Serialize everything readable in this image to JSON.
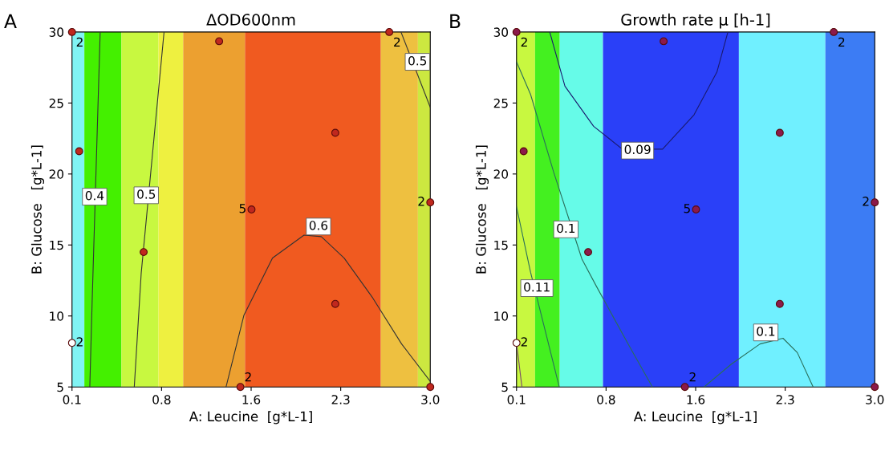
{
  "chart_data": [
    {
      "type": "scatter",
      "title": "ΔOD600nm",
      "xlabel": "A: Leucine  [g*L-1]",
      "ylabel": "B: Glucose   [g*L-1]",
      "xlim": [
        0.1,
        3.0
      ],
      "xticks": [
        0.1,
        {
          "value": 0.825,
          "label": "0.8"
        },
        {
          "value": 1.55,
          "label": "1.6"
        },
        {
          "value": 2.275,
          "label": "2.3"
        },
        {
          "value": 3.0,
          "label": "3.0"
        }
      ],
      "ylim": [
        5,
        30
      ],
      "yticks": [
        5,
        10,
        15,
        20,
        25,
        30
      ],
      "bands": [
        {
          "axis": "x",
          "from": 0.1,
          "to": 0.2,
          "color": "#80f4f4"
        },
        {
          "axis": "x",
          "from": 0.2,
          "to": 0.5,
          "color": "#44f000"
        },
        {
          "axis": "x",
          "from": 0.5,
          "to": 0.8,
          "color": "#c8f840"
        },
        {
          "axis": "x",
          "from": 0.8,
          "to": 1.0,
          "color": "#eef040"
        },
        {
          "axis": "x",
          "from": 1.0,
          "to": 1.5,
          "color": "#eca030"
        },
        {
          "axis": "x",
          "from": 1.5,
          "to": 2.6,
          "color": "#f05a20"
        },
        {
          "axis": "x",
          "from": 2.6,
          "to": 2.9,
          "color": "#eec040"
        },
        {
          "axis": "x",
          "from": 2.9,
          "to": 3.0,
          "color": "#cce840"
        }
      ],
      "series": [
        {
          "marker": "circle",
          "x": [
            0.1,
            1.291,
            0.158,
            0.68,
            1.553,
            2.231,
            2.231,
            1.463,
            2.668,
            3.0,
            3.0,
            0.1
          ],
          "values": [
            30,
            29.35,
            21.6,
            14.5,
            17.5,
            22.9,
            10.85,
            5,
            30,
            18.0,
            5,
            8.1
          ],
          "colors": [
            "#c0281e",
            "#c0281e",
            "#c0281e",
            "#c0281e",
            "#c0281e",
            "#c0281e",
            "#c0281e",
            "#c0281e",
            "#c0281e",
            "#c0281e",
            "#c0281e",
            "#ffffff"
          ]
        },
        {
          "type": "line",
          "color": "#333333",
          "x": [
            0.328,
            0.263,
            0.244
          ],
          "values": [
            30,
            11,
            5
          ]
        },
        {
          "type": "line",
          "color": "#333333",
          "x": [
            0.845,
            0.66,
            0.604
          ],
          "values": [
            30,
            13,
            5
          ]
        },
        {
          "type": "line",
          "color": "#333333",
          "x": [
            2.763,
            3.0
          ],
          "values": [
            30,
            24.7
          ]
        },
        {
          "type": "line",
          "color": "#333333",
          "x": [
            1.347,
            1.491,
            1.723,
            1.978,
            2.118,
            2.303,
            2.535,
            2.768,
            3.0
          ],
          "values": [
            5,
            10.04,
            14.08,
            15.69,
            15.59,
            14.08,
            11.26,
            8.03,
            5.4
          ]
        }
      ],
      "annotations": [
        "A",
        {
          "text": "0.4",
          "x": 0.283,
          "y": 18.4
        },
        {
          "text": "0.5",
          "x": 0.701,
          "y": 18.5
        },
        {
          "text": "0.5",
          "x": 2.896,
          "y": 27.9
        },
        {
          "text": "0.6",
          "x": 2.095,
          "y": 16.3
        },
        {
          "text": "2",
          "x": 0.1,
          "y": 30
        },
        {
          "text": "5",
          "x": 1.553,
          "y": 17.5
        },
        {
          "text": "2",
          "x": 1.463,
          "y": 5
        },
        {
          "text": "2",
          "x": 2.668,
          "y": 30
        },
        {
          "text": "2",
          "x": 3.0,
          "y": 18.0
        },
        {
          "text": "2",
          "x": 0.1,
          "y": 8.1
        }
      ]
    },
    {
      "type": "scatter",
      "title": "Growth rate μ [h-1]",
      "xlabel": "A: Leucine  [g*L-1]",
      "ylabel": "B: Glucose   [g*L-1]",
      "xlim": [
        0.1,
        3.0
      ],
      "xticks": [
        0.1,
        {
          "value": 0.825,
          "label": "0.8"
        },
        {
          "value": 1.55,
          "label": "1.6"
        },
        {
          "value": 2.275,
          "label": "2.3"
        },
        {
          "value": 3.0,
          "label": "3.0"
        }
      ],
      "ylim": [
        5,
        30
      ],
      "yticks": [
        5,
        10,
        15,
        20,
        25,
        30
      ],
      "bands": [
        {
          "axis": "x",
          "from": 0.1,
          "to": 0.25,
          "color": "#c8f840"
        },
        {
          "axis": "x",
          "from": 0.25,
          "to": 0.45,
          "color": "#44f020"
        },
        {
          "axis": "x",
          "from": 0.45,
          "to": 0.8,
          "color": "#66fbe8"
        },
        {
          "axis": "x",
          "from": 0.8,
          "to": 1.9,
          "color": "#2a40f8"
        },
        {
          "axis": "x",
          "from": 1.9,
          "to": 2.6,
          "color": "#70f0ff"
        },
        {
          "axis": "x",
          "from": 2.6,
          "to": 3.0,
          "color": "#3c7cf4"
        }
      ],
      "series": [
        {
          "marker": "circle",
          "x": [
            0.1,
            1.291,
            0.158,
            0.68,
            1.553,
            2.231,
            2.231,
            1.463,
            2.668,
            3.0,
            3.0,
            0.1
          ],
          "values": [
            30,
            29.35,
            21.6,
            14.5,
            17.5,
            22.9,
            10.85,
            5,
            30,
            18.0,
            5,
            8.1
          ],
          "colors": [
            "#8b1a4a",
            "#8b1a4a",
            "#8b1a4a",
            "#8b1a4a",
            "#8b1a4a",
            "#8b1a4a",
            "#8b1a4a",
            "#8b1a4a",
            "#8b1a4a",
            "#8b1a4a",
            "#8b1a4a",
            "#ffffff"
          ]
        },
        {
          "type": "line",
          "color": "#1a1a6e",
          "x": [
            0.369,
            0.492,
            0.724,
            0.957,
            1.282,
            1.537,
            1.723,
            1.811
          ],
          "values": [
            30,
            26.19,
            23.36,
            21.75,
            21.75,
            24.17,
            27.2,
            30
          ]
        },
        {
          "type": "line",
          "color": "#2a6e5a",
          "x": [
            0.1,
            0.214,
            0.4,
            0.63,
            0.748,
            1.003,
            1.2
          ],
          "values": [
            27.9,
            25.6,
            20.15,
            14.0,
            12.07,
            8.03,
            5
          ]
        },
        {
          "type": "line",
          "color": "#2a6e5a",
          "x": [
            0.1,
            0.214,
            0.33,
            0.446
          ],
          "values": [
            17.7,
            13.07,
            9.04,
            5
          ]
        },
        {
          "type": "line",
          "color": "#2a6e5a",
          "x": [
            1.618,
            1.839,
            2.071,
            2.257,
            2.373,
            2.501
          ],
          "values": [
            5,
            6.61,
            8.03,
            8.43,
            7.42,
            5
          ]
        },
        {
          "type": "line",
          "color": "#7a4a6a",
          "x": [
            0.1,
            0.144
          ],
          "values": [
            8.1,
            5
          ]
        }
      ],
      "annotations": [
        "B",
        {
          "text": "0.09",
          "x": 1.08,
          "y": 21.65
        },
        {
          "text": "0.1",
          "x": 0.5,
          "y": 16.1
        },
        {
          "text": "0.11",
          "x": 0.265,
          "y": 11.96
        },
        {
          "text": "0.1",
          "x": 2.118,
          "y": 8.84
        },
        {
          "text": "2",
          "x": 0.1,
          "y": 30
        },
        {
          "text": "5",
          "x": 1.553,
          "y": 17.5
        },
        {
          "text": "2",
          "x": 1.463,
          "y": 5
        },
        {
          "text": "2",
          "x": 2.668,
          "y": 30
        },
        {
          "text": "2",
          "x": 3.0,
          "y": 18.0
        },
        {
          "text": "2",
          "x": 0.1,
          "y": 8.1
        }
      ]
    }
  ]
}
